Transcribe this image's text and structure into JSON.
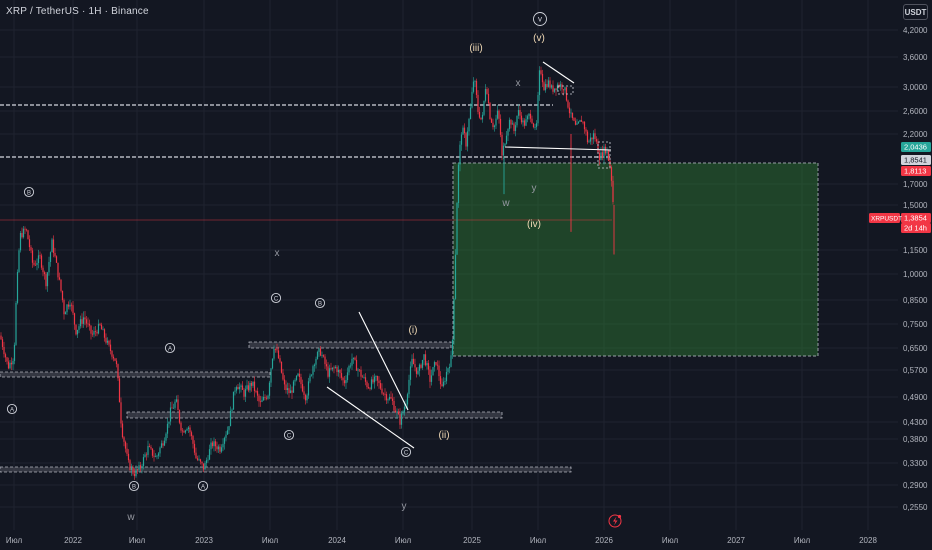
{
  "header": {
    "symbol_title": "XRP / TetherUS · 1H · Binance",
    "currency_button": "USDT"
  },
  "price_axis": {
    "labels": [
      "4,2000",
      "3,6000",
      "3,0000",
      "2,6000",
      "2,2000",
      "1,7000",
      "1,5000",
      "1,1500",
      "1,0000",
      "0,8500",
      "0,7500",
      "0,6500",
      "0,5700",
      "0,4900",
      "0,4300",
      "0,3800",
      "0,3300",
      "0,2900",
      "0,2550"
    ]
  },
  "price_tags": [
    {
      "text": "2,0436",
      "color": "#26a69a",
      "font_color": "#ffffff"
    },
    {
      "text": "1,8541",
      "color": "#d1d4dc",
      "font_color": "#131722"
    },
    {
      "text": "1,8113",
      "color": "#f23645",
      "font_color": "#ffffff"
    },
    {
      "text": "1,3854",
      "color": "#f23645",
      "font_color": "#ffffff"
    },
    {
      "text": "2d 14h",
      "color": "#f23645",
      "font_color": "#ffffff"
    }
  ],
  "symbol_tag": "XRPUSDT",
  "time_axis": {
    "labels": [
      "Июл",
      "2022",
      "Июл",
      "2023",
      "Июл",
      "2024",
      "Июл",
      "2025",
      "Июл",
      "2026",
      "Июл",
      "2027",
      "Июл",
      "2028"
    ]
  },
  "wave_labels": [
    {
      "text": "v",
      "style": "circled",
      "color": "#d1d4dc"
    },
    {
      "text": "(v)",
      "style": "plain",
      "color": "#f0d9b5"
    },
    {
      "text": "(iii)",
      "style": "plain",
      "color": "#f0d9b5"
    },
    {
      "text": "(iv)",
      "style": "plain",
      "color": "#f0d9b5"
    },
    {
      "text": "(i)",
      "style": "plain",
      "color": "#f0d9b5"
    },
    {
      "text": "(ii)",
      "style": "plain",
      "color": "#f0d9b5"
    },
    {
      "text": "B",
      "style": "circled",
      "color": "#d1d4dc"
    },
    {
      "text": "A",
      "style": "circled",
      "color": "#d1d4dc"
    },
    {
      "text": "A",
      "style": "circled",
      "color": "#d1d4dc"
    },
    {
      "text": "C",
      "style": "circled",
      "color": "#d1d4dc"
    },
    {
      "text": "B",
      "style": "circled",
      "color": "#d1d4dc"
    },
    {
      "text": "C",
      "style": "circled",
      "color": "#d1d4dc"
    },
    {
      "text": "B",
      "style": "circled",
      "color": "#d1d4dc"
    },
    {
      "text": "A",
      "style": "circled",
      "color": "#d1d4dc"
    },
    {
      "text": "C",
      "style": "circled",
      "color": "#d1d4dc"
    },
    {
      "text": "x",
      "style": "plain",
      "color": "#9598a1"
    },
    {
      "text": "x",
      "style": "plain",
      "color": "#9598a1"
    },
    {
      "text": "w",
      "style": "plain",
      "color": "#9598a1"
    },
    {
      "text": "w",
      "style": "plain",
      "color": "#9598a1"
    },
    {
      "text": "y",
      "style": "plain",
      "color": "#9598a1"
    },
    {
      "text": "y",
      "style": "plain",
      "color": "#9598a1"
    }
  ],
  "colors": {
    "background": "#131722",
    "bull": "#26a69a",
    "bear": "#f23645",
    "zone_fill": "#2e7d32",
    "grid": "#1f2330",
    "axis_text": "#b2b5be"
  },
  "events_icon": "lightning-icon"
}
